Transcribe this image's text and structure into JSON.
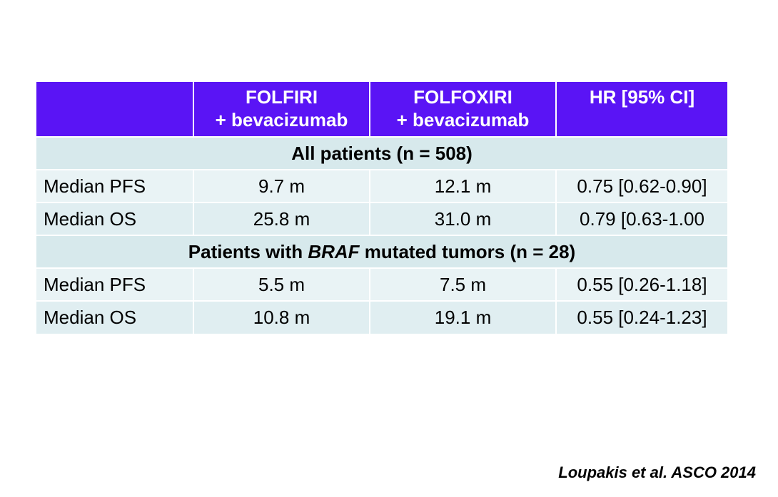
{
  "table": {
    "header": {
      "col1": [
        "FOLFIRI",
        "+ bevacizumab"
      ],
      "col2": [
        "FOLFOXIRI",
        "+ bevacizumab"
      ],
      "col3": "HR [95% CI]"
    },
    "section_all": {
      "label": "All patients (n = 508)",
      "rows": [
        {
          "label": "Median PFS",
          "folfiri": "9.7 m",
          "folfoxiri": "12.1 m",
          "hr": "0.75 [0.62-0.90]"
        },
        {
          "label": "Median OS",
          "folfiri": "25.8 m",
          "folfoxiri": "31.0 m",
          "hr": "0.79 [0.63-1.00"
        }
      ]
    },
    "section_braf": {
      "label_prefix": "Patients with ",
      "label_italic": "BRAF",
      "label_suffix": " mutated tumors (n = 28)",
      "rows": [
        {
          "label": "Median PFS",
          "folfiri": "5.5 m",
          "folfoxiri": "7.5 m",
          "hr": "0.55 [0.26-1.18]"
        },
        {
          "label": "Median OS",
          "folfiri": "10.8 m",
          "folfoxiri": "19.1 m",
          "hr": "0.55 [0.24-1.23]"
        }
      ]
    }
  },
  "citation": "Loupakis et al. ASCO 2014",
  "colors": {
    "header_bg": "#5a14f5",
    "section_bg": "#d7e9ec",
    "row_bg_a": "#e9f3f5",
    "row_bg_b": "#e0eef1"
  }
}
